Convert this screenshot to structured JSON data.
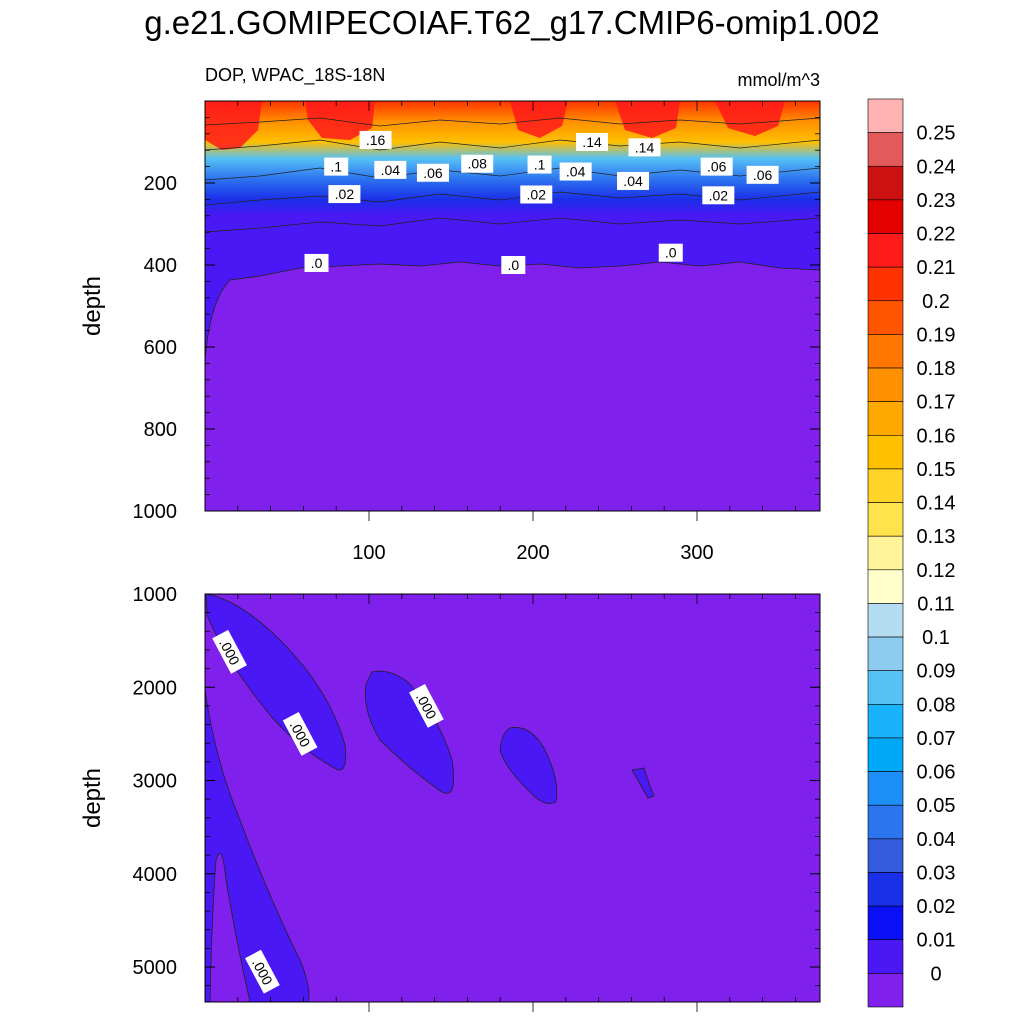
{
  "title": "g.e21.GOMIPECOIAF.T62_g17.CMIP6-omip1.002",
  "chart_data": [
    {
      "type": "heatmap",
      "panel": "upper",
      "subtitle_left": "DOP, WPAC_18S-18N",
      "subtitle_right": "mmol/m^3",
      "ylabel": "depth",
      "xlabel": "",
      "xlim": [
        0,
        375
      ],
      "ylim": [
        1000,
        0
      ],
      "xticks": [
        "100",
        "200",
        "300"
      ],
      "yticks": [
        "200",
        "400",
        "600",
        "800",
        "1000"
      ],
      "contour_labels": [
        {
          "text": ".16",
          "x": 104,
          "y": 95
        },
        {
          "text": ".14",
          "x": 236,
          "y": 100
        },
        {
          "text": ".14",
          "x": 268,
          "y": 113
        },
        {
          "text": ".1",
          "x": 80,
          "y": 160
        },
        {
          "text": ".1",
          "x": 204,
          "y": 155
        },
        {
          "text": ".08",
          "x": 166,
          "y": 153
        },
        {
          "text": ".06",
          "x": 139,
          "y": 175
        },
        {
          "text": ".06",
          "x": 312,
          "y": 160
        },
        {
          "text": ".06",
          "x": 340,
          "y": 180
        },
        {
          "text": ".04",
          "x": 113,
          "y": 168
        },
        {
          "text": ".04",
          "x": 226,
          "y": 172
        },
        {
          "text": ".04",
          "x": 261,
          "y": 195
        },
        {
          "text": ".02",
          "x": 85,
          "y": 227
        },
        {
          "text": ".02",
          "x": 202,
          "y": 228
        },
        {
          "text": ".02",
          "x": 313,
          "y": 230
        },
        {
          "text": ".0",
          "x": 68,
          "y": 395
        },
        {
          "text": ".0",
          "x": 188,
          "y": 400
        },
        {
          "text": ".0",
          "x": 284,
          "y": 370
        }
      ]
    },
    {
      "type": "heatmap",
      "panel": "lower",
      "ylabel": "depth",
      "xlabel": "",
      "xlim": [
        0,
        375
      ],
      "ylim": [
        5375,
        1000
      ],
      "yticks": [
        "1000",
        "2000",
        "3000",
        "4000",
        "5000"
      ],
      "contour_labels": [
        {
          "text": ".000",
          "x": 15,
          "y": 1620
        },
        {
          "text": ".000",
          "x": 58,
          "y": 2500
        },
        {
          "text": ".000",
          "x": 135,
          "y": 2200
        },
        {
          "text": ".000",
          "x": 35,
          "y": 5050
        }
      ]
    }
  ],
  "colorbar": {
    "labels": [
      "0.25",
      "0.24",
      "0.23",
      "0.22",
      "0.21",
      "0.2",
      "0.19",
      "0.18",
      "0.17",
      "0.16",
      "0.15",
      "0.14",
      "0.13",
      "0.12",
      "0.11",
      "0.1",
      "0.09",
      "0.08",
      "0.07",
      "0.06",
      "0.05",
      "0.04",
      "0.03",
      "0.02",
      "0.01",
      "0"
    ],
    "colors": [
      "#ffb3b3",
      "#e35a5a",
      "#cc1111",
      "#e50000",
      "#ff1a1a",
      "#ff3300",
      "#ff5500",
      "#ff7700",
      "#ff9000",
      "#ffa800",
      "#ffc000",
      "#ffd428",
      "#ffe34c",
      "#fff399",
      "#ffffcc",
      "#b4ddf2",
      "#8dccf0",
      "#56c1f5",
      "#19b3fb",
      "#00a8f8",
      "#1e8ff8",
      "#2d74ef",
      "#365cde",
      "#1a2fe8",
      "#0b0ff5",
      "#4a18f5",
      "#8020ec"
    ]
  }
}
